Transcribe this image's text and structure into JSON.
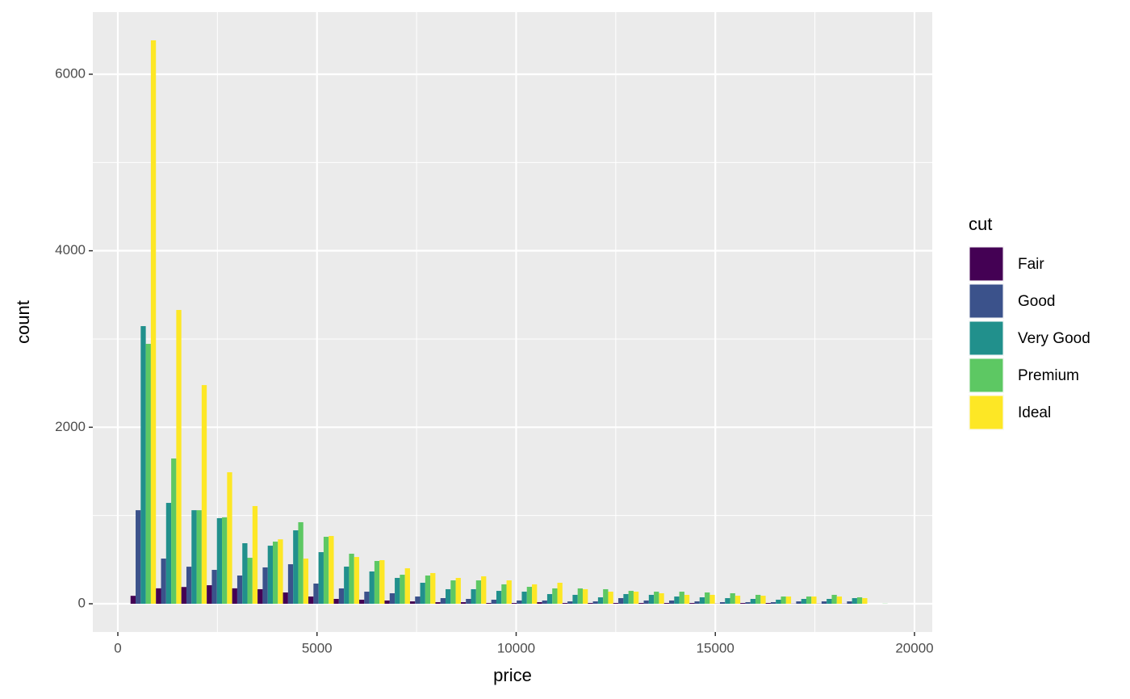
{
  "chart_data": {
    "type": "histogram",
    "x_label": "price",
    "y_label": "count",
    "legend_title": "cut",
    "legend_position": "right",
    "grid": true,
    "bins": [
      318.9,
      956.7,
      1594.5,
      2232.3,
      2870.1,
      3507.9,
      4145.7,
      4783.5,
      5421.3,
      6059.1,
      6696.9,
      7334.7,
      7972.5,
      8610.3,
      9248.1,
      9885.9,
      10523.7,
      11161.5,
      11799.3,
      12437.1,
      13074.9,
      13712.7,
      14350.5,
      14988.3,
      15626.1,
      16263.9,
      16901.7,
      17539.5,
      18177.3,
      18815.1,
      19452.9
    ],
    "series": [
      {
        "name": "Fair",
        "color": "#440154",
        "values": [
          90,
          175,
          190,
          210,
          175,
          165,
          128,
          82,
          55,
          46,
          37,
          27,
          18,
          18,
          9,
          9,
          18,
          9,
          9,
          9,
          9,
          9,
          9,
          2,
          9,
          9,
          2,
          2,
          2,
          0
        ]
      },
      {
        "name": "Good",
        "color": "#3b528b",
        "values": [
          1060,
          512,
          420,
          384,
          320,
          412,
          448,
          229,
          174,
          137,
          119,
          82,
          64,
          55,
          46,
          37,
          37,
          27,
          27,
          64,
          37,
          37,
          27,
          18,
          18,
          18,
          27,
          27,
          27,
          0
        ]
      },
      {
        "name": "Very Good",
        "color": "#21908c",
        "values": [
          3146,
          1143,
          1060,
          970,
          686,
          658,
          832,
          585,
          421,
          366,
          293,
          238,
          165,
          165,
          146,
          137,
          110,
          101,
          73,
          110,
          101,
          82,
          73,
          64,
          55,
          46,
          55,
          55,
          64,
          0
        ]
      },
      {
        "name": "Premium",
        "color": "#5dc863",
        "values": [
          2945,
          1646,
          1060,
          979,
          521,
          704,
          924,
          759,
          567,
          485,
          329,
          320,
          265,
          265,
          220,
          192,
          174,
          174,
          165,
          146,
          137,
          137,
          128,
          119,
          101,
          82,
          82,
          101,
          73,
          2
        ]
      },
      {
        "name": "Ideal",
        "color": "#fde725",
        "values": [
          6384,
          3329,
          2478,
          1490,
          1107,
          730,
          512,
          768,
          530,
          494,
          402,
          348,
          293,
          311,
          265,
          220,
          238,
          165,
          137,
          137,
          119,
          101,
          101,
          91,
          91,
          82,
          82,
          82,
          64,
          0
        ]
      }
    ],
    "xlim": [
      -628,
      20446
    ],
    "xticks": [
      0,
      5000,
      10000,
      15000,
      20000
    ],
    "ylim": [
      -320,
      6704
    ],
    "yticks": [
      0,
      2000,
      4000,
      6000
    ]
  }
}
